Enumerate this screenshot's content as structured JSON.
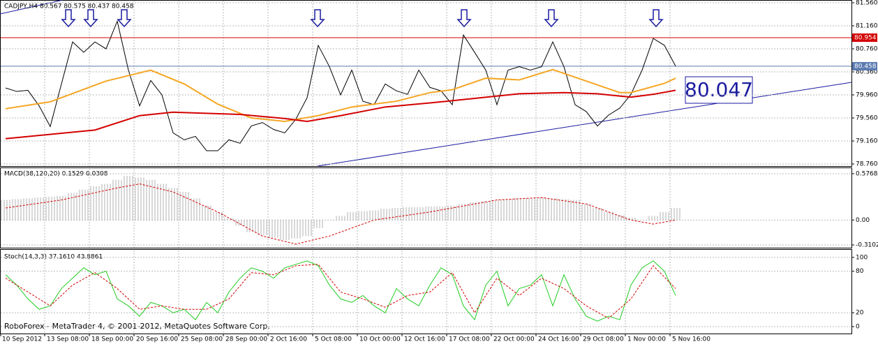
{
  "chart_data": [
    {
      "type": "line",
      "title": "CADJPY,H4  80.567 80.575 80.437 80.458",
      "xlim": [
        -0.5,
        75.75
      ],
      "ylim": [
        78.724,
        81.608
      ],
      "xticks": [
        {
          "value": -0.5,
          "label": "10 Sep 2012"
        },
        {
          "value": 3.5,
          "label": "13 Sep 08:00"
        },
        {
          "value": 7.5,
          "label": "18 Sep 00:00"
        },
        {
          "value": 11.5,
          "label": "20 Sep 16:00"
        },
        {
          "value": 15.5,
          "label": "25 Sep 08:00"
        },
        {
          "value": 19.5,
          "label": "28 Sep 00:00"
        },
        {
          "value": 23.5,
          "label": "2 Oct 16:00"
        },
        {
          "value": 27.5,
          "label": "5 Oct 08:00"
        },
        {
          "value": 31.5,
          "label": "10 Oct 00:00"
        },
        {
          "value": 35.5,
          "label": "12 Oct 16:00"
        },
        {
          "value": 39.5,
          "label": "17 Oct 08:00"
        },
        {
          "value": 43.5,
          "label": "22 Oct 00:00"
        },
        {
          "value": 47.5,
          "label": "24 Oct 16:00"
        },
        {
          "value": 51.5,
          "label": "29 Oct 08:00"
        },
        {
          "value": 55.5,
          "label": "1 Nov 00:00"
        },
        {
          "value": 59.5,
          "label": "5 Nov 16:00"
        }
      ],
      "yticks": [
        {
          "value": 81.56,
          "label": "81.560"
        },
        {
          "value": 81.16,
          "label": "81.160"
        },
        {
          "value": 80.76,
          "label": "80.760"
        },
        {
          "value": 80.36,
          "label": "80.360"
        },
        {
          "value": 79.96,
          "label": "79.960"
        },
        {
          "value": 79.56,
          "label": "79.560"
        },
        {
          "value": 79.16,
          "label": "79.160"
        },
        {
          "value": 78.76,
          "label": "78.760"
        }
      ],
      "grid": true,
      "hlines": [
        {
          "value": 80.954,
          "color": "#d40000"
        },
        {
          "value": 80.458,
          "color": "#5a7ab0"
        }
      ],
      "annotation": "80.047",
      "series": [
        {
          "color": "#000000",
          "x": [
            0,
            1,
            2,
            3,
            4,
            5,
            6,
            7,
            8,
            9,
            10,
            11,
            12,
            13,
            14,
            15,
            16,
            17,
            18,
            19,
            20,
            21,
            22,
            23,
            24,
            25,
            26,
            27,
            28,
            29,
            30,
            31,
            32,
            33,
            34,
            35,
            36,
            37,
            38,
            39,
            40,
            41,
            42,
            43,
            44,
            45,
            46,
            47,
            48,
            49,
            50,
            51,
            52,
            53,
            54,
            55,
            56,
            57,
            58,
            59,
            60
          ],
          "values": [
            80.08,
            80.02,
            80.04,
            79.77,
            79.41,
            80.15,
            80.88,
            80.7,
            80.88,
            80.76,
            81.24,
            80.39,
            79.77,
            80.21,
            79.96,
            79.3,
            79.18,
            79.24,
            78.99,
            78.99,
            79.18,
            79.12,
            79.42,
            79.48,
            79.36,
            79.3,
            79.54,
            79.91,
            80.82,
            80.45,
            79.96,
            80.39,
            79.85,
            79.79,
            80.15,
            80.03,
            79.97,
            80.39,
            80.09,
            80.03,
            79.79,
            81.0,
            80.7,
            80.39,
            79.79,
            80.39,
            80.45,
            80.39,
            80.45,
            80.88,
            80.45,
            79.79,
            79.67,
            79.42,
            79.61,
            79.73,
            79.97,
            80.39,
            80.94,
            80.82,
            80.46
          ]
        },
        {
          "color": "#f5a623",
          "x": [
            0,
            4,
            9,
            13,
            16,
            19,
            22,
            25,
            28,
            31,
            35,
            38,
            40,
            43,
            46,
            49,
            52,
            55,
            56,
            59,
            60
          ],
          "values": [
            79.72,
            79.84,
            80.2,
            80.39,
            80.15,
            79.8,
            79.56,
            79.5,
            79.6,
            79.75,
            79.85,
            80.0,
            80.05,
            80.25,
            80.22,
            80.4,
            80.2,
            80.0,
            80.0,
            80.16,
            80.25
          ]
        },
        {
          "color": "#d40000",
          "x": [
            0,
            8,
            12,
            15,
            21,
            25,
            27,
            30,
            34,
            38,
            42,
            46,
            50,
            53,
            56,
            58,
            60
          ],
          "values": [
            79.2,
            79.35,
            79.6,
            79.66,
            79.62,
            79.55,
            79.5,
            79.6,
            79.75,
            79.82,
            79.9,
            79.98,
            80.0,
            79.98,
            79.92,
            79.97,
            80.04
          ]
        }
      ]
    },
    {
      "type": "bar",
      "title": "MACD(38,120,20) 0.1529 0.0308",
      "xlim": [
        -0.5,
        75.75
      ],
      "ylim": [
        -0.345,
        0.646
      ],
      "yticks": [
        0.5768,
        {
          "value": 0,
          "label": "0.00"
        },
        -0.3102
      ],
      "series": [
        {
          "color": "#b0b0b0",
          "x": [
            0,
            1,
            2,
            3,
            4,
            5,
            6,
            7,
            8,
            9,
            10,
            11,
            12,
            13,
            14,
            15,
            16,
            17,
            18,
            19,
            20,
            21,
            22,
            23,
            24,
            25,
            26,
            27,
            28,
            29,
            30,
            31,
            32,
            33,
            34,
            35,
            36,
            37,
            38,
            39,
            40,
            41,
            42,
            43,
            44,
            45,
            46,
            47,
            48,
            49,
            50,
            51,
            52,
            53,
            54,
            55,
            56,
            57,
            58,
            59,
            60
          ],
          "values": [
            0.25,
            0.26,
            0.27,
            0.28,
            0.29,
            0.3,
            0.34,
            0.38,
            0.42,
            0.45,
            0.5,
            0.55,
            0.53,
            0.5,
            0.45,
            0.4,
            0.35,
            0.27,
            0.18,
            0.1,
            0.02,
            -0.07,
            -0.15,
            -0.19,
            -0.22,
            -0.25,
            -0.23,
            -0.2,
            -0.1,
            0,
            0.05,
            0.1,
            0.11,
            0.12,
            0.14,
            0.15,
            0.16,
            0.16,
            0.17,
            0.17,
            0.18,
            0.2,
            0.22,
            0.23,
            0.25,
            0.26,
            0.27,
            0.27,
            0.28,
            0.27,
            0.26,
            0.25,
            0.2,
            0.15,
            0.1,
            0.06,
            0.03,
            0,
            0.05,
            0.1,
            0.15
          ]
        },
        {
          "color": "#d40000",
          "x": [
            0,
            5,
            10,
            12,
            15,
            19,
            23,
            26,
            29,
            33,
            38,
            44,
            48,
            52,
            56,
            58,
            60
          ],
          "values": [
            0.15,
            0.25,
            0.4,
            0.45,
            0.35,
            0.1,
            -0.2,
            -0.3,
            -0.2,
            0,
            0.1,
            0.25,
            0.28,
            0.2,
            0,
            -0.05,
            0
          ]
        }
      ]
    },
    {
      "type": "line",
      "title": "Stoch(14,3,3) 37.1610 43.8861",
      "xlim": [
        -0.5,
        75.75
      ],
      "ylim": [
        -10,
        111
      ],
      "yticks": [
        100,
        80,
        20,
        0
      ],
      "series": [
        {
          "color": "#22cc22",
          "x": [
            0,
            1,
            2,
            3,
            4,
            5,
            6,
            7,
            8,
            9,
            10,
            11,
            12,
            13,
            14,
            15,
            16,
            17,
            18,
            19,
            20,
            21,
            22,
            23,
            24,
            25,
            26,
            27,
            28,
            29,
            30,
            31,
            32,
            33,
            34,
            35,
            36,
            37,
            38,
            39,
            40,
            41,
            42,
            43,
            44,
            45,
            46,
            47,
            48,
            49,
            50,
            51,
            52,
            53,
            54,
            55,
            56,
            57,
            58,
            59,
            60
          ],
          "values": [
            75,
            60,
            40,
            25,
            30,
            55,
            70,
            85,
            75,
            80,
            40,
            30,
            15,
            35,
            30,
            20,
            25,
            10,
            35,
            20,
            50,
            70,
            85,
            80,
            70,
            85,
            90,
            95,
            88,
            60,
            40,
            35,
            45,
            30,
            20,
            55,
            40,
            30,
            60,
            85,
            75,
            30,
            10,
            60,
            80,
            30,
            55,
            60,
            75,
            30,
            75,
            40,
            15,
            8,
            15,
            10,
            60,
            85,
            95,
            80,
            45
          ]
        },
        {
          "color": "#d40000",
          "x": [
            0,
            2,
            4,
            6,
            8,
            10,
            12,
            14,
            16,
            18,
            20,
            22,
            24,
            26,
            28,
            30,
            32,
            34,
            36,
            38,
            40,
            42,
            44,
            46,
            48,
            50,
            52,
            54,
            56,
            58,
            60
          ],
          "values": [
            70,
            50,
            30,
            60,
            78,
            55,
            25,
            30,
            25,
            25,
            40,
            78,
            75,
            88,
            90,
            50,
            40,
            28,
            45,
            50,
            78,
            20,
            70,
            45,
            70,
            55,
            30,
            12,
            40,
            88,
            55
          ]
        }
      ]
    }
  ],
  "footer": "RoboForex - MetaTrader 4, © 2001-2012, MetaQuotes Software Corp."
}
